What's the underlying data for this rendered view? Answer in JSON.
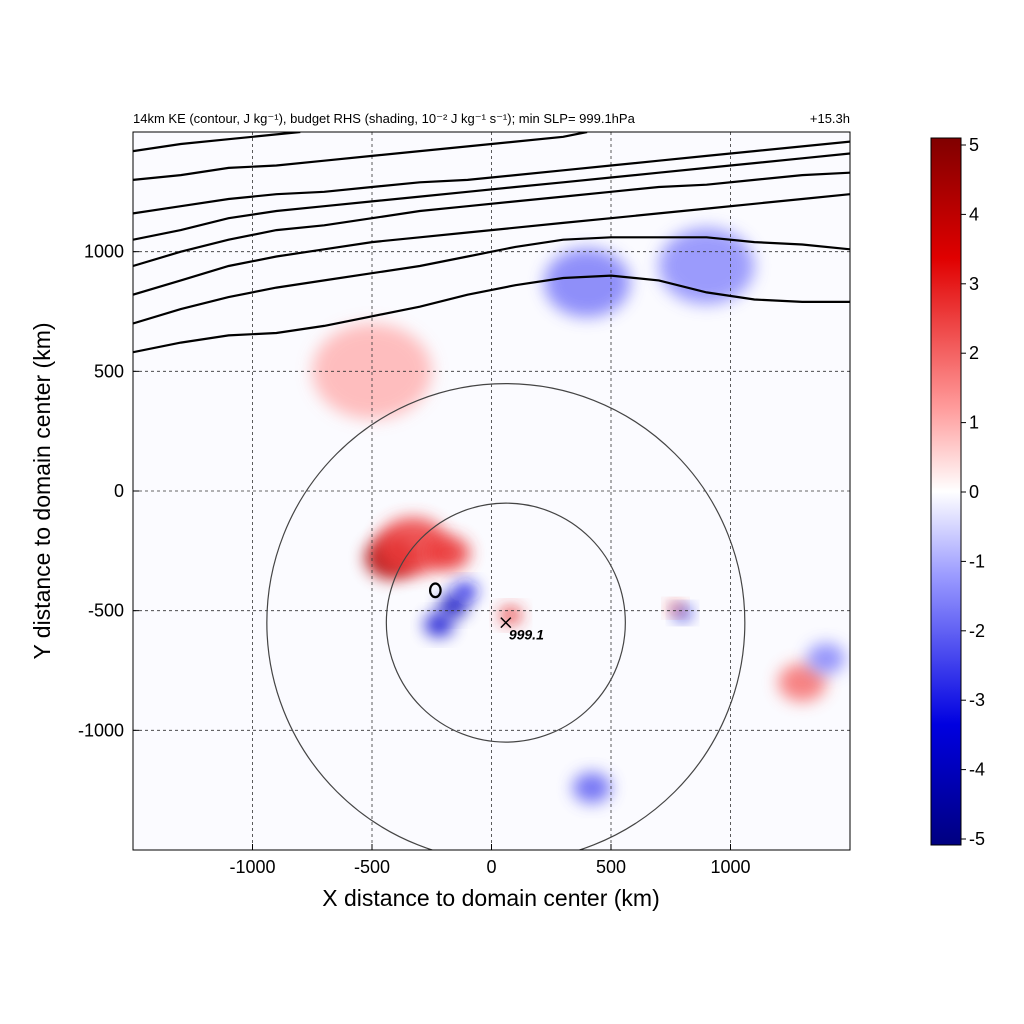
{
  "chart_data": {
    "type": "heatmap",
    "title_left": "14km KE (contour, J kg⁻¹), budget RHS (shading, 10⁻² J kg⁻¹ s⁻¹); min SLP= 999.1hPa",
    "title_right": "+15.3h",
    "xlabel": "X distance to domain center (km)",
    "ylabel": "Y distance to domain center (km)",
    "xlim": [
      -1500,
      1500
    ],
    "ylim": [
      -1500,
      1500
    ],
    "xticks": [
      -1000,
      -500,
      0,
      500,
      1000
    ],
    "yticks": [
      -1000,
      -500,
      0,
      500,
      1000
    ],
    "xtick_labels": [
      "-1000",
      "-500",
      "0",
      "500",
      "1000"
    ],
    "ytick_labels": [
      "-1000",
      "-500",
      "0",
      "500",
      "1000"
    ],
    "grid": true,
    "grid_style": "dashed",
    "colorbar": {
      "range": [
        -5,
        5
      ],
      "ticks": [
        5,
        4,
        3,
        2,
        1,
        0,
        -1,
        -2,
        -3,
        -4,
        -5
      ],
      "tick_labels": [
        "5",
        "4",
        "3",
        "2",
        "1",
        "0",
        "-1",
        "-2",
        "-3",
        "-4",
        "-5"
      ],
      "colors": [
        "#800000",
        "#e00000",
        "#ff9a9a",
        "#ffffff",
        "#9a9aff",
        "#0000e0",
        "#000080"
      ]
    },
    "storm_center": {
      "x": 60,
      "y": -550,
      "label": "999.1",
      "min_slp": 999.1
    },
    "range_circles_km": [
      500,
      1000
    ],
    "ke_contours": [
      {
        "name": "contour-1",
        "points": [
          [
            -1500,
            580
          ],
          [
            -1300,
            620
          ],
          [
            -1100,
            650
          ],
          [
            -900,
            660
          ],
          [
            -700,
            690
          ],
          [
            -500,
            730
          ],
          [
            -300,
            770
          ],
          [
            -100,
            820
          ],
          [
            100,
            860
          ],
          [
            300,
            890
          ],
          [
            500,
            900
          ],
          [
            700,
            880
          ],
          [
            900,
            830
          ],
          [
            1100,
            800
          ],
          [
            1300,
            790
          ],
          [
            1500,
            790
          ]
        ]
      },
      {
        "name": "contour-2",
        "points": [
          [
            -1500,
            700
          ],
          [
            -1300,
            760
          ],
          [
            -1100,
            810
          ],
          [
            -900,
            850
          ],
          [
            -700,
            880
          ],
          [
            -500,
            910
          ],
          [
            -300,
            940
          ],
          [
            -100,
            980
          ],
          [
            100,
            1020
          ],
          [
            300,
            1050
          ],
          [
            500,
            1060
          ],
          [
            700,
            1060
          ],
          [
            900,
            1060
          ],
          [
            1100,
            1040
          ],
          [
            1300,
            1030
          ],
          [
            1500,
            1010
          ]
        ]
      },
      {
        "name": "contour-3",
        "points": [
          [
            -1500,
            820
          ],
          [
            -1300,
            880
          ],
          [
            -1100,
            940
          ],
          [
            -900,
            980
          ],
          [
            -700,
            1010
          ],
          [
            -500,
            1040
          ],
          [
            -300,
            1060
          ],
          [
            -100,
            1080
          ],
          [
            100,
            1100
          ],
          [
            300,
            1120
          ],
          [
            500,
            1140
          ],
          [
            700,
            1160
          ],
          [
            900,
            1180
          ],
          [
            1100,
            1200
          ],
          [
            1300,
            1220
          ],
          [
            1500,
            1240
          ]
        ]
      },
      {
        "name": "contour-4",
        "points": [
          [
            -1500,
            940
          ],
          [
            -1300,
            1000
          ],
          [
            -1100,
            1050
          ],
          [
            -900,
            1090
          ],
          [
            -700,
            1110
          ],
          [
            -500,
            1140
          ],
          [
            -300,
            1170
          ],
          [
            -100,
            1190
          ],
          [
            100,
            1210
          ],
          [
            300,
            1230
          ],
          [
            500,
            1250
          ],
          [
            700,
            1270
          ],
          [
            900,
            1280
          ],
          [
            1100,
            1300
          ],
          [
            1300,
            1320
          ],
          [
            1500,
            1330
          ]
        ]
      },
      {
        "name": "contour-5",
        "points": [
          [
            -1500,
            1050
          ],
          [
            -1300,
            1090
          ],
          [
            -1100,
            1140
          ],
          [
            -900,
            1170
          ],
          [
            -700,
            1190
          ],
          [
            -500,
            1210
          ],
          [
            -300,
            1230
          ],
          [
            -100,
            1250
          ],
          [
            100,
            1270
          ],
          [
            300,
            1290
          ],
          [
            500,
            1310
          ],
          [
            700,
            1330
          ],
          [
            900,
            1350
          ],
          [
            1100,
            1370
          ],
          [
            1300,
            1390
          ],
          [
            1500,
            1410
          ]
        ]
      },
      {
        "name": "contour-6",
        "points": [
          [
            -1500,
            1160
          ],
          [
            -1300,
            1190
          ],
          [
            -1100,
            1220
          ],
          [
            -900,
            1240
          ],
          [
            -700,
            1250
          ],
          [
            -500,
            1270
          ],
          [
            -300,
            1290
          ],
          [
            -100,
            1300
          ],
          [
            100,
            1320
          ],
          [
            300,
            1340
          ],
          [
            500,
            1360
          ],
          [
            700,
            1380
          ],
          [
            900,
            1400
          ],
          [
            1100,
            1420
          ],
          [
            1300,
            1440
          ],
          [
            1500,
            1460
          ]
        ]
      },
      {
        "name": "contour-7",
        "points": [
          [
            -1500,
            1300
          ],
          [
            -1300,
            1320
          ],
          [
            -1100,
            1350
          ],
          [
            -900,
            1360
          ],
          [
            -700,
            1380
          ],
          [
            -500,
            1400
          ],
          [
            -300,
            1420
          ],
          [
            -100,
            1440
          ],
          [
            100,
            1460
          ],
          [
            300,
            1480
          ],
          [
            400,
            1500
          ]
        ]
      },
      {
        "name": "contour-8",
        "points": [
          [
            -1500,
            1420
          ],
          [
            -1300,
            1450
          ],
          [
            -1100,
            1470
          ],
          [
            -900,
            1490
          ],
          [
            -800,
            1500
          ]
        ]
      }
    ],
    "ke_small_loop": {
      "cx": -235,
      "cy": -415,
      "r": 22
    },
    "shading_blobs": [
      {
        "x": -420,
        "y": -280,
        "v": 4.2,
        "r": 110
      },
      {
        "x": -330,
        "y": -230,
        "v": 2.5,
        "r": 150
      },
      {
        "x": -180,
        "y": -260,
        "v": 2.6,
        "r": 90
      },
      {
        "x": -160,
        "y": -480,
        "v": -4.0,
        "r": 60
      },
      {
        "x": -220,
        "y": -560,
        "v": -3.6,
        "r": 60
      },
      {
        "x": -110,
        "y": -420,
        "v": -3.0,
        "r": 50
      },
      {
        "x": 80,
        "y": -520,
        "v": 2.8,
        "r": 45
      },
      {
        "x": 800,
        "y": -510,
        "v": -3.5,
        "r": 35
      },
      {
        "x": 770,
        "y": -490,
        "v": 2.5,
        "r": 30
      },
      {
        "x": 420,
        "y": -1240,
        "v": -2.0,
        "r": 80
      },
      {
        "x": -500,
        "y": 500,
        "v": 0.9,
        "r": 250
      },
      {
        "x": 400,
        "y": 870,
        "v": -1.6,
        "r": 180
      },
      {
        "x": 900,
        "y": 940,
        "v": -1.4,
        "r": 200
      },
      {
        "x": 1300,
        "y": -800,
        "v": 1.8,
        "r": 100
      },
      {
        "x": 1400,
        "y": -700,
        "v": -1.5,
        "r": 80
      }
    ]
  }
}
